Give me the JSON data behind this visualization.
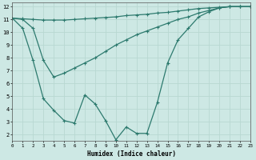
{
  "line1_x": [
    0,
    1,
    2,
    3,
    4,
    5,
    6,
    7,
    8,
    9,
    10,
    11,
    12,
    13,
    14,
    15,
    16,
    17,
    18,
    19,
    20,
    21,
    22,
    23
  ],
  "line1_y": [
    11.1,
    11.05,
    11.0,
    10.95,
    10.95,
    10.95,
    11.0,
    11.05,
    11.1,
    11.15,
    11.2,
    11.3,
    11.35,
    11.4,
    11.5,
    11.55,
    11.65,
    11.75,
    11.85,
    11.9,
    11.95,
    12.0,
    12.0,
    12.0
  ],
  "line2_x": [
    0,
    1,
    2,
    3,
    4,
    5,
    6,
    7,
    8,
    9,
    10,
    11,
    12,
    13,
    14,
    15,
    16,
    17,
    18,
    19,
    20,
    21,
    22,
    23
  ],
  "line2_y": [
    11.1,
    11.0,
    10.3,
    7.8,
    6.5,
    6.8,
    7.2,
    7.6,
    8.0,
    8.5,
    9.0,
    9.4,
    9.8,
    10.1,
    10.4,
    10.7,
    11.0,
    11.2,
    11.5,
    11.7,
    11.9,
    12.0,
    12.0,
    12.0
  ],
  "line3_x": [
    0,
    1,
    2,
    3,
    4,
    5,
    6,
    7,
    8,
    9,
    10,
    11,
    12,
    13,
    14,
    15,
    16,
    17,
    18,
    19,
    20,
    21,
    22,
    23
  ],
  "line3_y": [
    11.1,
    10.3,
    7.8,
    4.8,
    3.9,
    3.1,
    2.9,
    5.1,
    4.4,
    3.1,
    1.6,
    2.6,
    2.1,
    2.1,
    4.5,
    7.6,
    9.4,
    10.3,
    11.2,
    11.6,
    11.9,
    12.0,
    12.0,
    12.0
  ],
  "color": "#2d7a6e",
  "bg_color": "#cde8e4",
  "grid_color": "#b8d8d2",
  "xlabel": "Humidex (Indice chaleur)",
  "xlim": [
    0,
    23
  ],
  "ylim": [
    1.5,
    12.3
  ],
  "yticks": [
    2,
    3,
    4,
    5,
    6,
    7,
    8,
    9,
    10,
    11,
    12
  ],
  "xticks": [
    0,
    1,
    2,
    3,
    4,
    5,
    6,
    7,
    8,
    9,
    10,
    11,
    12,
    13,
    14,
    15,
    16,
    17,
    18,
    19,
    20,
    21,
    22,
    23
  ],
  "marker": "+"
}
